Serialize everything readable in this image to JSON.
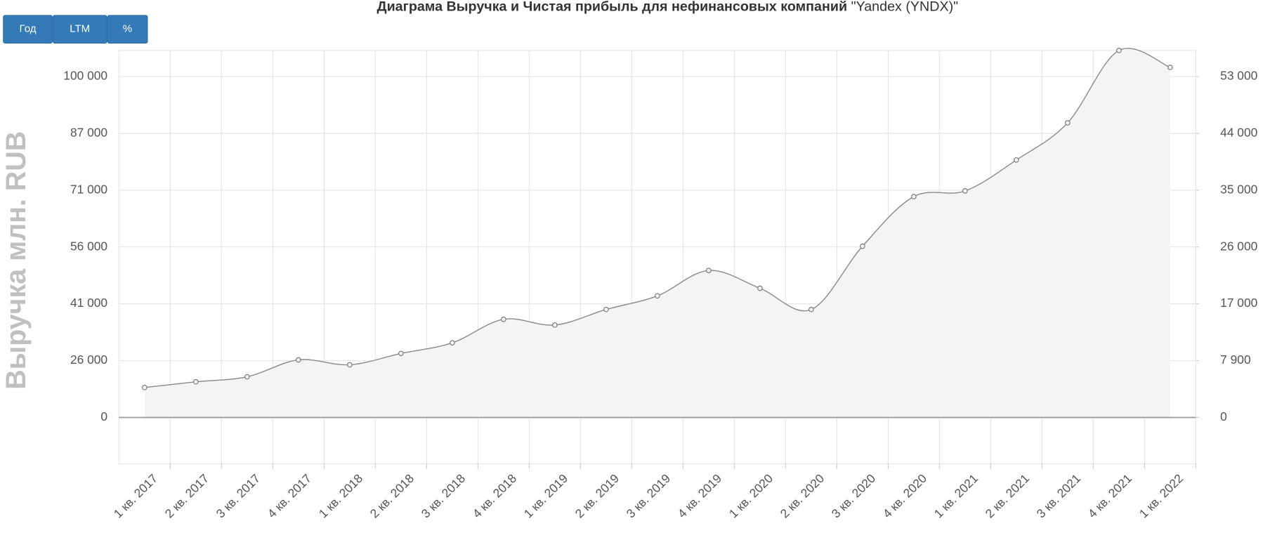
{
  "buttons": [
    "Год",
    "LTM",
    "%"
  ],
  "chart_data": {
    "type": "area",
    "title": "Диаграма Выручка и Чистая прибыль для нефинансовых компаний",
    "subtitle": "\"Yandex (YNDX)\"",
    "ylabel": "Выручка млн. RUB",
    "categories": [
      "1 кв. 2017",
      "2 кв. 2017",
      "3 кв. 2017",
      "4 кв. 2017",
      "1 кв. 2018",
      "2 кв. 2018",
      "3 кв. 2018",
      "4 кв. 2018",
      "1 кв. 2019",
      "2 кв. 2019",
      "3 кв. 2019",
      "4 кв. 2019",
      "1 кв. 2020",
      "2 кв. 2020",
      "3 кв. 2020",
      "4 кв. 2020",
      "1 кв. 2021",
      "2 кв. 2021",
      "3 кв. 2021",
      "4 кв. 2021",
      "1 кв. 2022"
    ],
    "series": [
      {
        "name": "Выручка",
        "color": "#888888",
        "fill": "#f4f4f4",
        "values": [
          13700,
          16300,
          18600,
          26200,
          24100,
          27900,
          30700,
          36900,
          35400,
          39500,
          43100,
          49800,
          45100,
          39500,
          56200,
          69300,
          70800,
          79500,
          89400,
          106000,
          102100
        ]
      }
    ],
    "ylim": [
      -21000,
      106000
    ],
    "yticks": [
      0,
      {
        "value": 26000,
        "label": "26 000"
      },
      {
        "value": 41000,
        "label": "41 000"
      },
      {
        "value": 56000,
        "label": "56 000"
      },
      {
        "value": 71000,
        "label": "71 000"
      },
      {
        "value": 87000,
        "label": "87 000"
      },
      {
        "value": 100000,
        "label": "100 000"
      }
    ],
    "y2lim": [
      -6400,
      57200
    ],
    "y2ticks": [
      0,
      {
        "value": 7900,
        "label": "7 900"
      },
      {
        "value": 17000,
        "label": "17 000"
      },
      {
        "value": 26000,
        "label": "26 000"
      },
      {
        "value": 35000,
        "label": "35 000"
      },
      {
        "value": 44000,
        "label": "44 000"
      },
      {
        "value": 53000,
        "label": "53 000"
      }
    ],
    "grid": true
  }
}
